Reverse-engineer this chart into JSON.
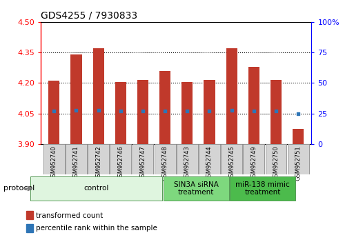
{
  "title": "GDS4255 / 7930833",
  "samples": [
    "GSM952740",
    "GSM952741",
    "GSM952742",
    "GSM952746",
    "GSM952747",
    "GSM952748",
    "GSM952743",
    "GSM952744",
    "GSM952745",
    "GSM952749",
    "GSM952750",
    "GSM952751"
  ],
  "bar_tops": [
    4.21,
    4.34,
    4.37,
    4.205,
    4.215,
    4.26,
    4.205,
    4.215,
    4.37,
    4.28,
    4.215,
    3.975
  ],
  "bar_bottoms": [
    3.9,
    3.9,
    3.9,
    3.9,
    3.9,
    3.9,
    3.9,
    3.9,
    3.9,
    3.9,
    3.9,
    3.9
  ],
  "percentile_values": [
    4.063,
    4.065,
    4.065,
    4.063,
    4.063,
    4.063,
    4.062,
    4.063,
    4.065,
    4.063,
    4.062,
    4.05
  ],
  "ylim": [
    3.9,
    4.5
  ],
  "yticks_left": [
    3.9,
    4.05,
    4.2,
    4.35,
    4.5
  ],
  "yticks_right": [
    0,
    25,
    50,
    75,
    100
  ],
  "grid_dotted_at": [
    4.05,
    4.2,
    4.35
  ],
  "bar_color": "#c0392b",
  "dot_color": "#2e75b6",
  "groups": [
    {
      "label": "control",
      "start": 0,
      "end": 5,
      "color": "#dff5df"
    },
    {
      "label": "SIN3A siRNA\ntreatment",
      "start": 6,
      "end": 8,
      "color": "#7ed87e"
    },
    {
      "label": "miR-138 mimic\ntreatment",
      "start": 9,
      "end": 11,
      "color": "#4cbb4c"
    }
  ],
  "protocol_label": "protocol",
  "legend_items": [
    {
      "label": "transformed count",
      "color": "#c0392b"
    },
    {
      "label": "percentile rank within the sample",
      "color": "#2e75b6"
    }
  ]
}
